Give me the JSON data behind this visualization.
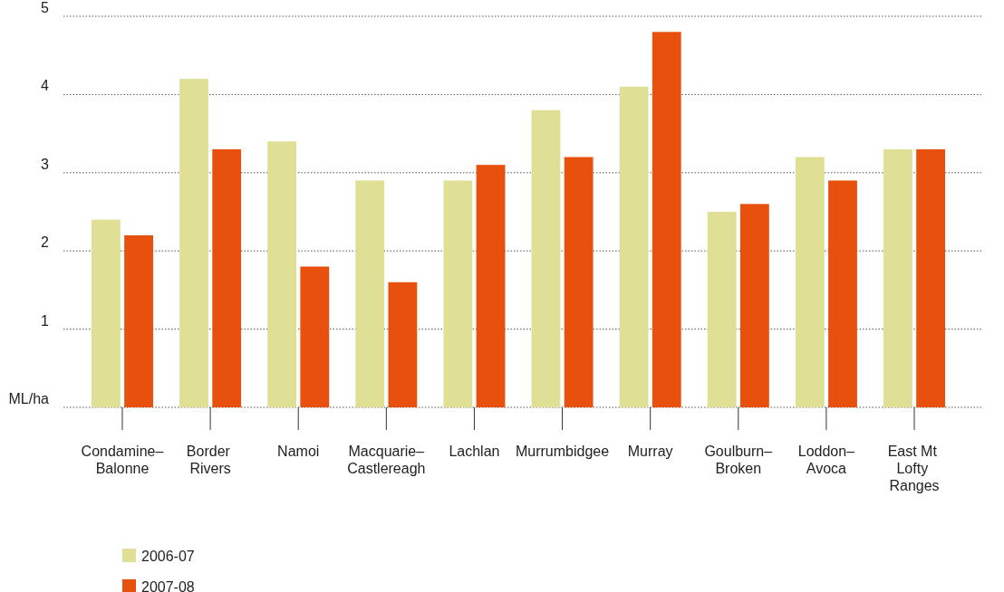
{
  "chart_data": {
    "type": "bar",
    "categories": [
      "Condamine–Balonne",
      "Border Rivers",
      "Namoi",
      "Macquarie–Castlereagh",
      "Lachlan",
      "Murrumbidgee",
      "Murray",
      "Goulburn–Broken",
      "Loddon–Avoca",
      "East Mt Lofty Ranges"
    ],
    "series": [
      {
        "name": "2006-07",
        "color": "#dfe096",
        "values": [
          2.4,
          4.2,
          3.4,
          2.9,
          2.9,
          3.8,
          4.1,
          2.5,
          3.2,
          3.3
        ]
      },
      {
        "name": "2007-08",
        "color": "#e8500e",
        "values": [
          2.2,
          3.3,
          1.8,
          1.6,
          3.1,
          3.2,
          4.8,
          2.6,
          2.9,
          3.3
        ]
      }
    ],
    "ylim": [
      0,
      5
    ],
    "yticks": [
      {
        "value": 0,
        "label": "ML/ha"
      },
      1,
      2,
      3,
      4,
      5
    ],
    "grid": "y",
    "legend": "bottom left"
  }
}
